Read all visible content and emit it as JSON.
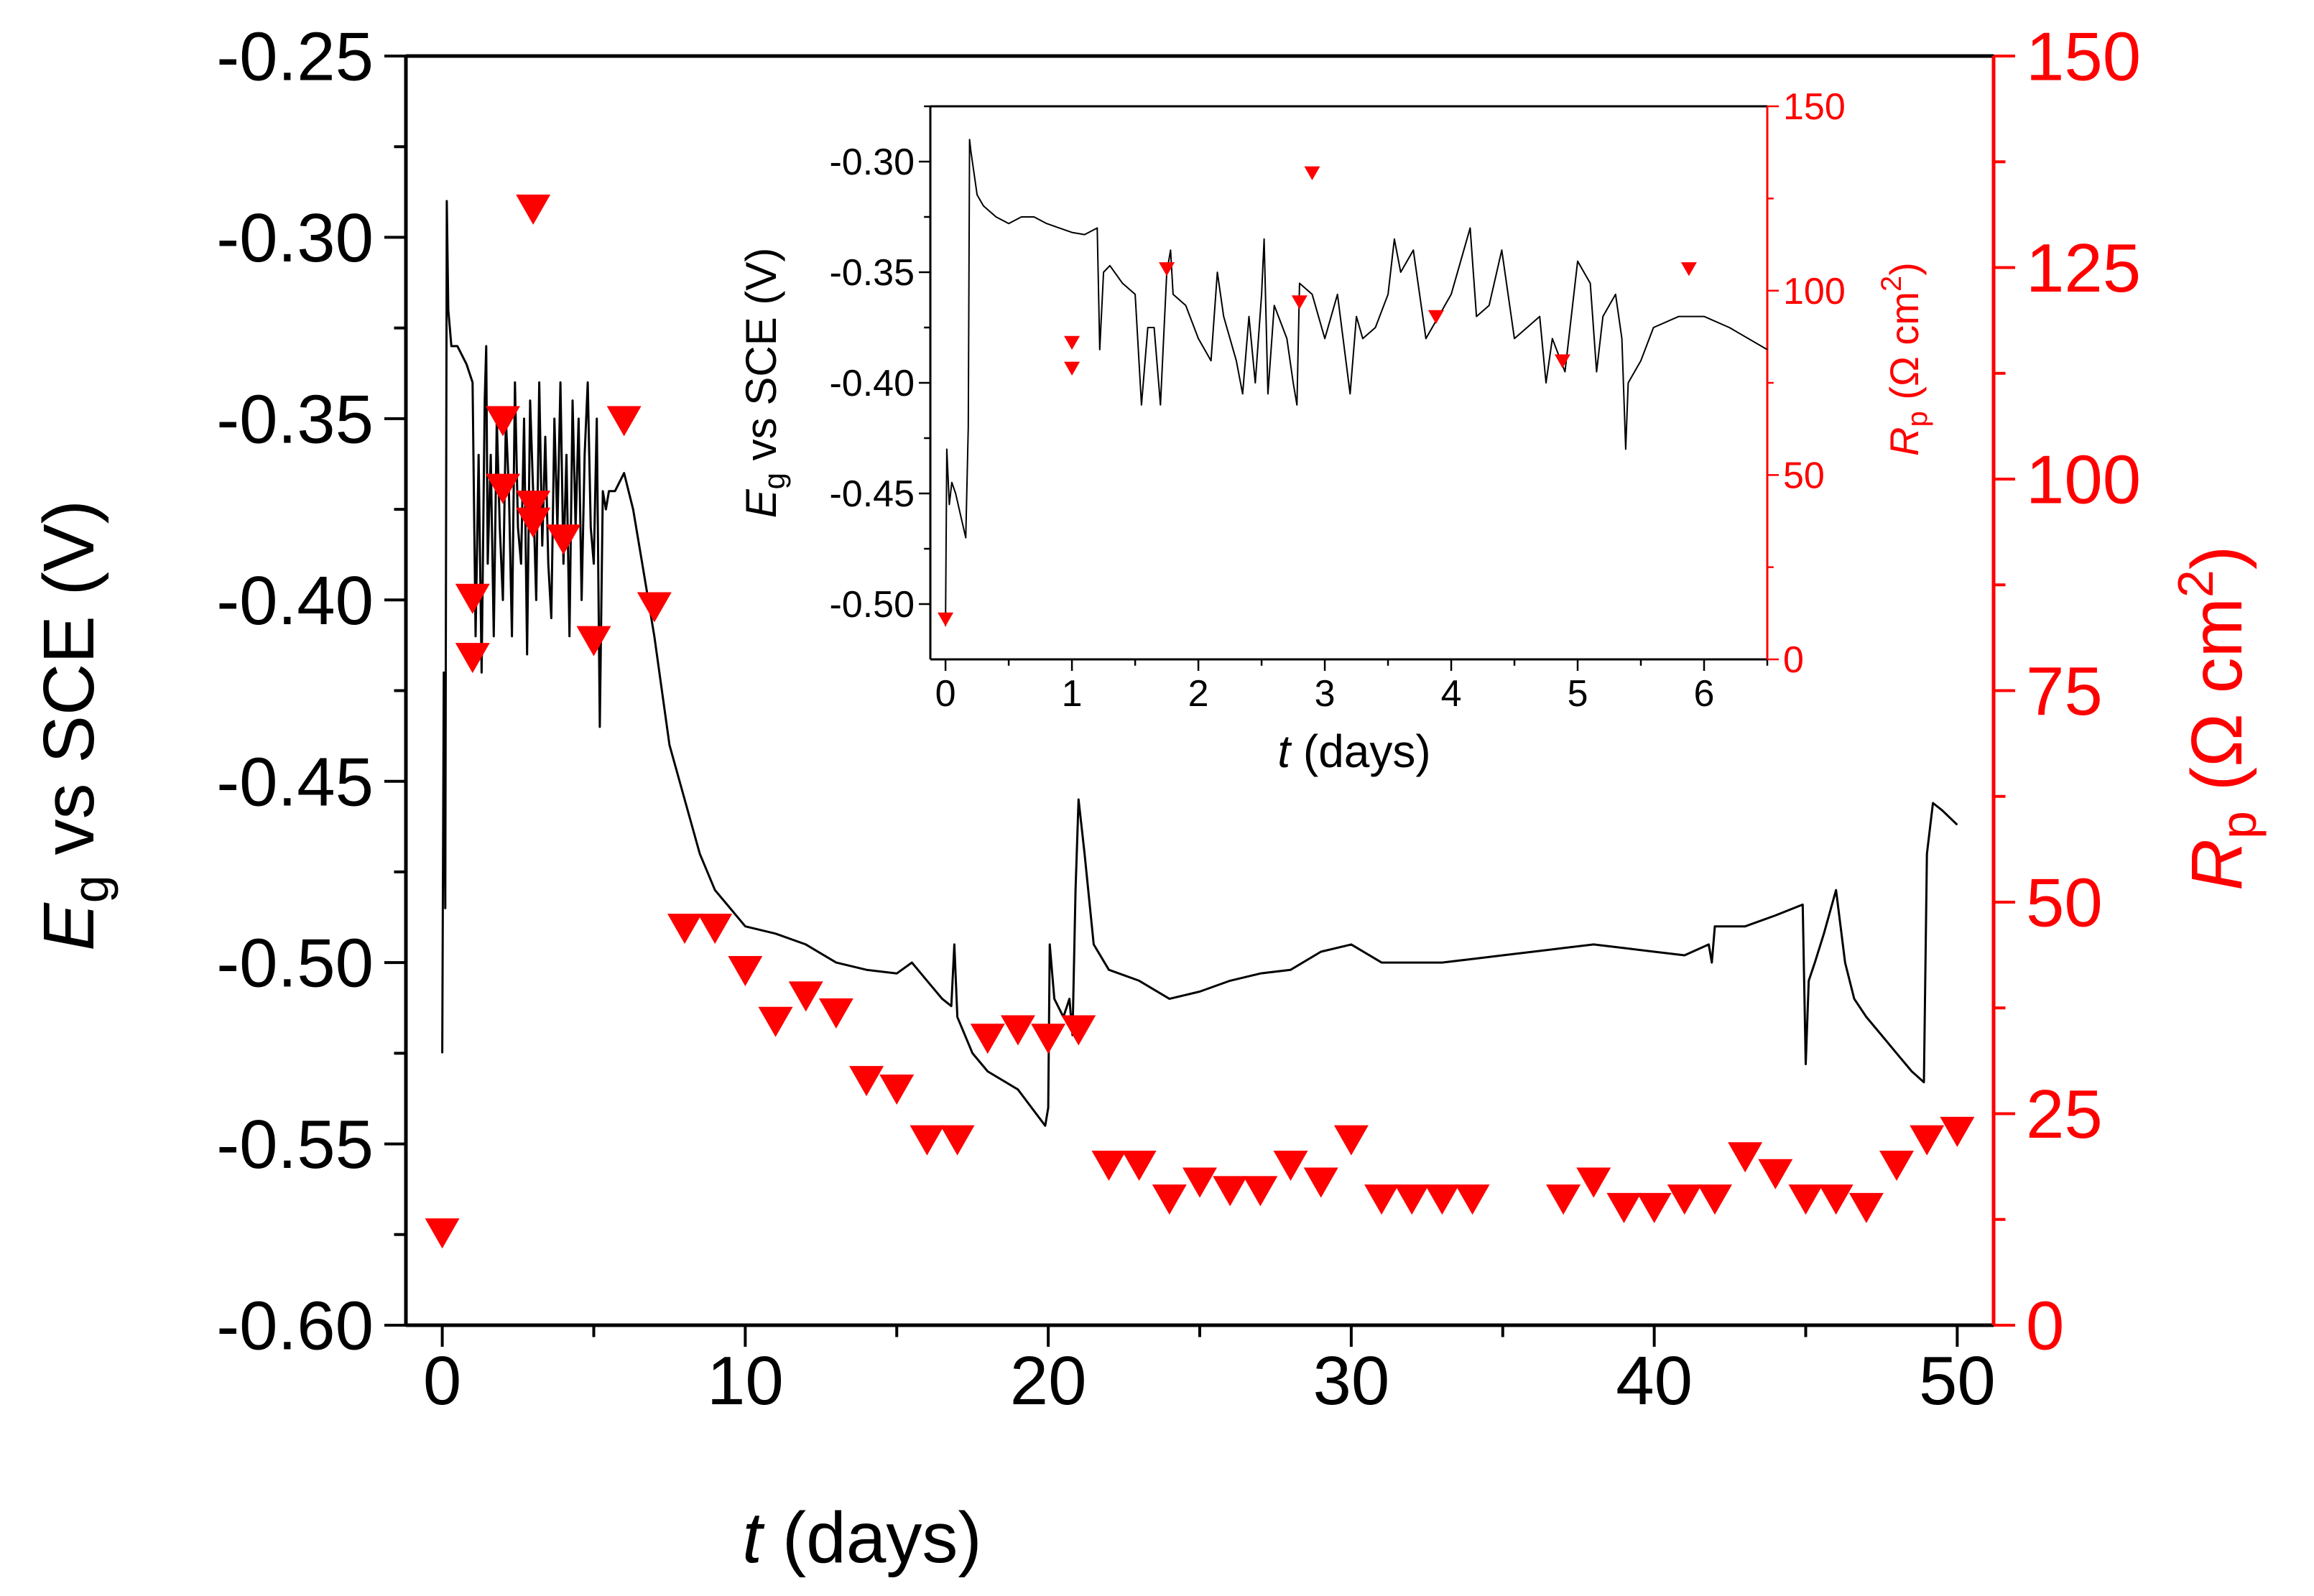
{
  "colors": {
    "axis": "#000000",
    "secondary": "#ff0000",
    "trace": "#000000",
    "marker": "#ff0000",
    "background": "#ffffff"
  },
  "chart_data": [
    {
      "id": "main",
      "type": "line+scatter",
      "title": "",
      "xlabel": {
        "var": "t",
        "rest": " (days)"
      },
      "ylabel_left": {
        "var": "E",
        "sub": "g",
        "rest": " vs SCE (V)"
      },
      "ylabel_right": {
        "var": "R",
        "sub": "p",
        "rest": " (Ω cm",
        "sup": "2",
        "close": ")"
      },
      "xlim": [
        -1.2,
        51.2
      ],
      "ylim_left": [
        -0.6,
        -0.25
      ],
      "ylim_right": [
        0,
        150
      ],
      "xticks": [
        0,
        10,
        20,
        30,
        40,
        50
      ],
      "xtick_labels": [
        "0",
        "10",
        "20",
        "30",
        "40",
        "50"
      ],
      "yticks_left": [
        -0.6,
        -0.55,
        -0.5,
        -0.45,
        -0.4,
        -0.35,
        -0.3,
        -0.25
      ],
      "ytick_labels_left": [
        "-0.60",
        "-0.55",
        "-0.50",
        "-0.45",
        "-0.40",
        "-0.35",
        "-0.30",
        "-0.25"
      ],
      "yticks_right": [
        0,
        25,
        50,
        75,
        100,
        125,
        150
      ],
      "ytick_labels_right": [
        "0",
        "25",
        "50",
        "75",
        "100",
        "125",
        "150"
      ],
      "series": [
        {
          "name": "Eg vs SCE",
          "type": "line",
          "axis": "left",
          "x": [
            0,
            0.05,
            0.1,
            0.15,
            0.2,
            0.3,
            0.5,
            0.8,
            1.0,
            1.1,
            1.2,
            1.3,
            1.4,
            1.45,
            1.5,
            1.6,
            1.7,
            1.8,
            1.9,
            2.0,
            2.1,
            2.2,
            2.3,
            2.4,
            2.5,
            2.6,
            2.7,
            2.8,
            2.9,
            3.0,
            3.1,
            3.2,
            3.3,
            3.4,
            3.5,
            3.6,
            3.7,
            3.8,
            3.9,
            4.0,
            4.1,
            4.2,
            4.3,
            4.4,
            4.5,
            4.6,
            4.7,
            4.8,
            4.9,
            5.0,
            5.1,
            5.2,
            5.3,
            5.4,
            5.5,
            5.7,
            6.0,
            6.3,
            6.6,
            7.0,
            7.5,
            8.0,
            8.5,
            9.0,
            9.5,
            10,
            11,
            12,
            13,
            14,
            15,
            15.5,
            16,
            16.5,
            16.8,
            16.9,
            17.0,
            17.5,
            18,
            19,
            19.9,
            20.0,
            20.05,
            20.2,
            20.5,
            20.7,
            20.8,
            20.9,
            21.0,
            21.2,
            21.5,
            22,
            23,
            24,
            25,
            26,
            27,
            28,
            29,
            30,
            31,
            32,
            33,
            34,
            35,
            36,
            37,
            38,
            39,
            40,
            41,
            41.8,
            41.9,
            42,
            43,
            44,
            44.9,
            45.0,
            45.1,
            45.3,
            45.6,
            46,
            46.3,
            46.6,
            47,
            47.5,
            48,
            48.5,
            48.9,
            49.0,
            49.2,
            49.5,
            50
          ],
          "y": [
            -0.525,
            -0.42,
            -0.485,
            -0.29,
            -0.32,
            -0.33,
            -0.33,
            -0.335,
            -0.34,
            -0.41,
            -0.36,
            -0.42,
            -0.345,
            -0.33,
            -0.39,
            -0.36,
            -0.41,
            -0.35,
            -0.38,
            -0.4,
            -0.35,
            -0.37,
            -0.41,
            -0.34,
            -0.38,
            -0.39,
            -0.35,
            -0.415,
            -0.345,
            -0.37,
            -0.4,
            -0.34,
            -0.385,
            -0.355,
            -0.39,
            -0.405,
            -0.35,
            -0.38,
            -0.34,
            -0.39,
            -0.36,
            -0.41,
            -0.345,
            -0.38,
            -0.35,
            -0.4,
            -0.36,
            -0.34,
            -0.38,
            -0.39,
            -0.35,
            -0.435,
            -0.37,
            -0.375,
            -0.37,
            -0.37,
            -0.365,
            -0.375,
            -0.39,
            -0.41,
            -0.44,
            -0.455,
            -0.47,
            -0.48,
            -0.485,
            -0.49,
            -0.492,
            -0.495,
            -0.5,
            -0.502,
            -0.503,
            -0.5,
            -0.505,
            -0.51,
            -0.512,
            -0.495,
            -0.515,
            -0.525,
            -0.53,
            -0.535,
            -0.545,
            -0.54,
            -0.495,
            -0.51,
            -0.515,
            -0.51,
            -0.52,
            -0.48,
            -0.455,
            -0.47,
            -0.495,
            -0.502,
            -0.505,
            -0.51,
            -0.508,
            -0.505,
            -0.503,
            -0.502,
            -0.497,
            -0.495,
            -0.5,
            -0.5,
            -0.5,
            -0.499,
            -0.498,
            -0.497,
            -0.496,
            -0.495,
            -0.496,
            -0.497,
            -0.498,
            -0.495,
            -0.5,
            -0.49,
            -0.49,
            -0.487,
            -0.484,
            -0.528,
            -0.505,
            -0.5,
            -0.492,
            -0.48,
            -0.5,
            -0.51,
            -0.515,
            -0.52,
            -0.525,
            -0.53,
            -0.533,
            -0.47,
            -0.456,
            -0.458,
            -0.462
          ]
        },
        {
          "name": "Rp",
          "type": "scatter",
          "marker": "down-triangle",
          "axis": "right",
          "x": [
            0,
            1,
            1,
            2,
            2,
            3,
            3,
            3,
            4,
            5,
            6,
            7,
            8,
            9,
            10,
            11,
            12,
            13,
            14,
            15,
            16,
            17,
            18,
            19,
            20,
            21,
            22,
            23,
            24,
            25,
            26,
            27,
            28,
            29,
            30,
            31,
            32,
            33,
            34,
            37,
            38,
            39,
            40,
            41,
            42,
            43,
            44,
            45,
            46,
            47,
            48,
            49,
            50
          ],
          "y": [
            11,
            79,
            86,
            107,
            99,
            132,
            97,
            95,
            93,
            81,
            107,
            85,
            47,
            47,
            42,
            36,
            39,
            37,
            29,
            28,
            22,
            22,
            34,
            35,
            34,
            35,
            19,
            19,
            15,
            17,
            16,
            16,
            19,
            17,
            22,
            15,
            15,
            15,
            15,
            15,
            17,
            14,
            14,
            15,
            15,
            20,
            18,
            15,
            15,
            14,
            19,
            22,
            23
          ]
        }
      ]
    },
    {
      "id": "inset",
      "type": "line+scatter",
      "title": "",
      "xlabel": {
        "var": "t",
        "rest": " (days)"
      },
      "ylabel_left": {
        "var": "E",
        "sub": "g",
        "rest": " vs SCE (V)"
      },
      "ylabel_right": {
        "var": "R",
        "sub": "p",
        "rest": " (Ω cm",
        "sup": "2",
        "close": ")"
      },
      "xlim": [
        -0.12,
        6.5
      ],
      "ylim_left": [
        -0.525,
        -0.275
      ],
      "ylim_right": [
        0,
        150
      ],
      "xticks": [
        0,
        1,
        2,
        3,
        4,
        5,
        6
      ],
      "xtick_labels": [
        "0",
        "1",
        "2",
        "3",
        "4",
        "5",
        "6"
      ],
      "yticks_left": [
        -0.5,
        -0.45,
        -0.4,
        -0.35,
        -0.3
      ],
      "ytick_labels_left": [
        "-0.50",
        "-0.45",
        "-0.40",
        "-0.35",
        "-0.30"
      ],
      "yticks_right": [
        0,
        50,
        100,
        150
      ],
      "ytick_labels_right": [
        "0",
        "50",
        "100",
        "150"
      ],
      "series": [
        {
          "name": "Eg vs SCE",
          "type": "line",
          "axis": "left",
          "x": [
            0,
            0.01,
            0.03,
            0.05,
            0.08,
            0.12,
            0.16,
            0.18,
            0.19,
            0.2,
            0.25,
            0.3,
            0.4,
            0.5,
            0.6,
            0.7,
            0.8,
            0.9,
            1.0,
            1.1,
            1.2,
            1.22,
            1.25,
            1.3,
            1.4,
            1.5,
            1.55,
            1.6,
            1.65,
            1.7,
            1.75,
            1.78,
            1.8,
            1.9,
            2.0,
            2.1,
            2.15,
            2.2,
            2.3,
            2.35,
            2.4,
            2.45,
            2.5,
            2.52,
            2.55,
            2.6,
            2.7,
            2.75,
            2.78,
            2.8,
            2.9,
            3.0,
            3.1,
            3.2,
            3.25,
            3.3,
            3.4,
            3.5,
            3.55,
            3.6,
            3.7,
            3.8,
            3.9,
            4.0,
            4.1,
            4.15,
            4.2,
            4.3,
            4.4,
            4.5,
            4.6,
            4.7,
            4.75,
            4.8,
            4.9,
            5.0,
            5.1,
            5.15,
            5.2,
            5.3,
            5.35,
            5.38,
            5.4,
            5.5,
            5.6,
            5.8,
            6.0,
            6.2,
            6.5
          ],
          "y": [
            -0.51,
            -0.43,
            -0.455,
            -0.445,
            -0.45,
            -0.46,
            -0.47,
            -0.42,
            -0.29,
            -0.295,
            -0.315,
            -0.32,
            -0.325,
            -0.328,
            -0.325,
            -0.325,
            -0.328,
            -0.33,
            -0.332,
            -0.333,
            -0.33,
            -0.385,
            -0.35,
            -0.347,
            -0.355,
            -0.36,
            -0.41,
            -0.375,
            -0.375,
            -0.41,
            -0.35,
            -0.34,
            -0.36,
            -0.365,
            -0.38,
            -0.39,
            -0.35,
            -0.37,
            -0.39,
            -0.405,
            -0.37,
            -0.4,
            -0.36,
            -0.335,
            -0.405,
            -0.365,
            -0.38,
            -0.4,
            -0.41,
            -0.355,
            -0.36,
            -0.38,
            -0.36,
            -0.405,
            -0.37,
            -0.38,
            -0.375,
            -0.36,
            -0.335,
            -0.35,
            -0.34,
            -0.38,
            -0.37,
            -0.36,
            -0.34,
            -0.33,
            -0.37,
            -0.365,
            -0.34,
            -0.38,
            -0.375,
            -0.37,
            -0.4,
            -0.38,
            -0.395,
            -0.345,
            -0.355,
            -0.395,
            -0.37,
            -0.36,
            -0.38,
            -0.43,
            -0.4,
            -0.39,
            -0.375,
            -0.37,
            -0.37,
            -0.375,
            -0.385
          ]
        },
        {
          "name": "Rp",
          "type": "scatter",
          "marker": "down-triangle",
          "axis": "right",
          "x": [
            0,
            1,
            1,
            1.75,
            2.8,
            2.9,
            3.88,
            4.88,
            5.88
          ],
          "y": [
            11,
            86,
            79,
            106,
            97,
            132,
            93,
            81,
            106
          ]
        }
      ]
    }
  ]
}
